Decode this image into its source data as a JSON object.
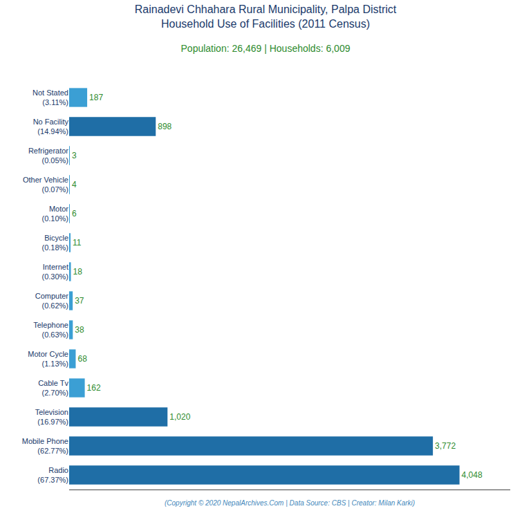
{
  "chart_data": {
    "type": "bar",
    "orientation": "horizontal",
    "title": "Rainadevi Chhahara Rural Municipality, Palpa District\nHousehold Use of Facilities (2011 Census)",
    "subtitle": "Population: 26,469 | Households: 6,009",
    "annotations": [
      "(Copyright © 2020 NepalArchives.Com | Data Source: CBS | Creator: Milan Karki)"
    ],
    "categories": [
      "Not Stated\n(3.11%)",
      "No Facility\n(14.94%)",
      "Refrigerator\n(0.05%)",
      "Other Vehicle\n(0.07%)",
      "Motor\n(0.10%)",
      "Bicycle\n(0.18%)",
      "Internet\n(0.30%)",
      "Computer\n(0.62%)",
      "Telephone\n(0.63%)",
      "Motor Cycle\n(1.13%)",
      "Cable Tv\n(2.70%)",
      "Television\n(16.97%)",
      "Mobile Phone\n(62.77%)",
      "Radio\n(67.37%)"
    ],
    "values": [
      187,
      898,
      3,
      4,
      6,
      11,
      18,
      37,
      38,
      68,
      162,
      1020,
      3772,
      4048
    ],
    "value_labels": [
      "187",
      "898",
      "3",
      "4",
      "6",
      "11",
      "18",
      "37",
      "38",
      "68",
      "162",
      "1,020",
      "3,772",
      "4,048"
    ],
    "colors": [
      "#3B9FD4",
      "#1F6EA6",
      "#3B9FD4",
      "#3B9FD4",
      "#3B9FD4",
      "#3B9FD4",
      "#3B9FD4",
      "#3B9FD4",
      "#3B9FD4",
      "#3B9FD4",
      "#3B9FD4",
      "#1F6EA6",
      "#1F6EA6",
      "#1F6EA6"
    ],
    "data_labels": true,
    "xlim": [
      0,
      4574.24
    ],
    "grid": false,
    "tick_labels": "y"
  }
}
